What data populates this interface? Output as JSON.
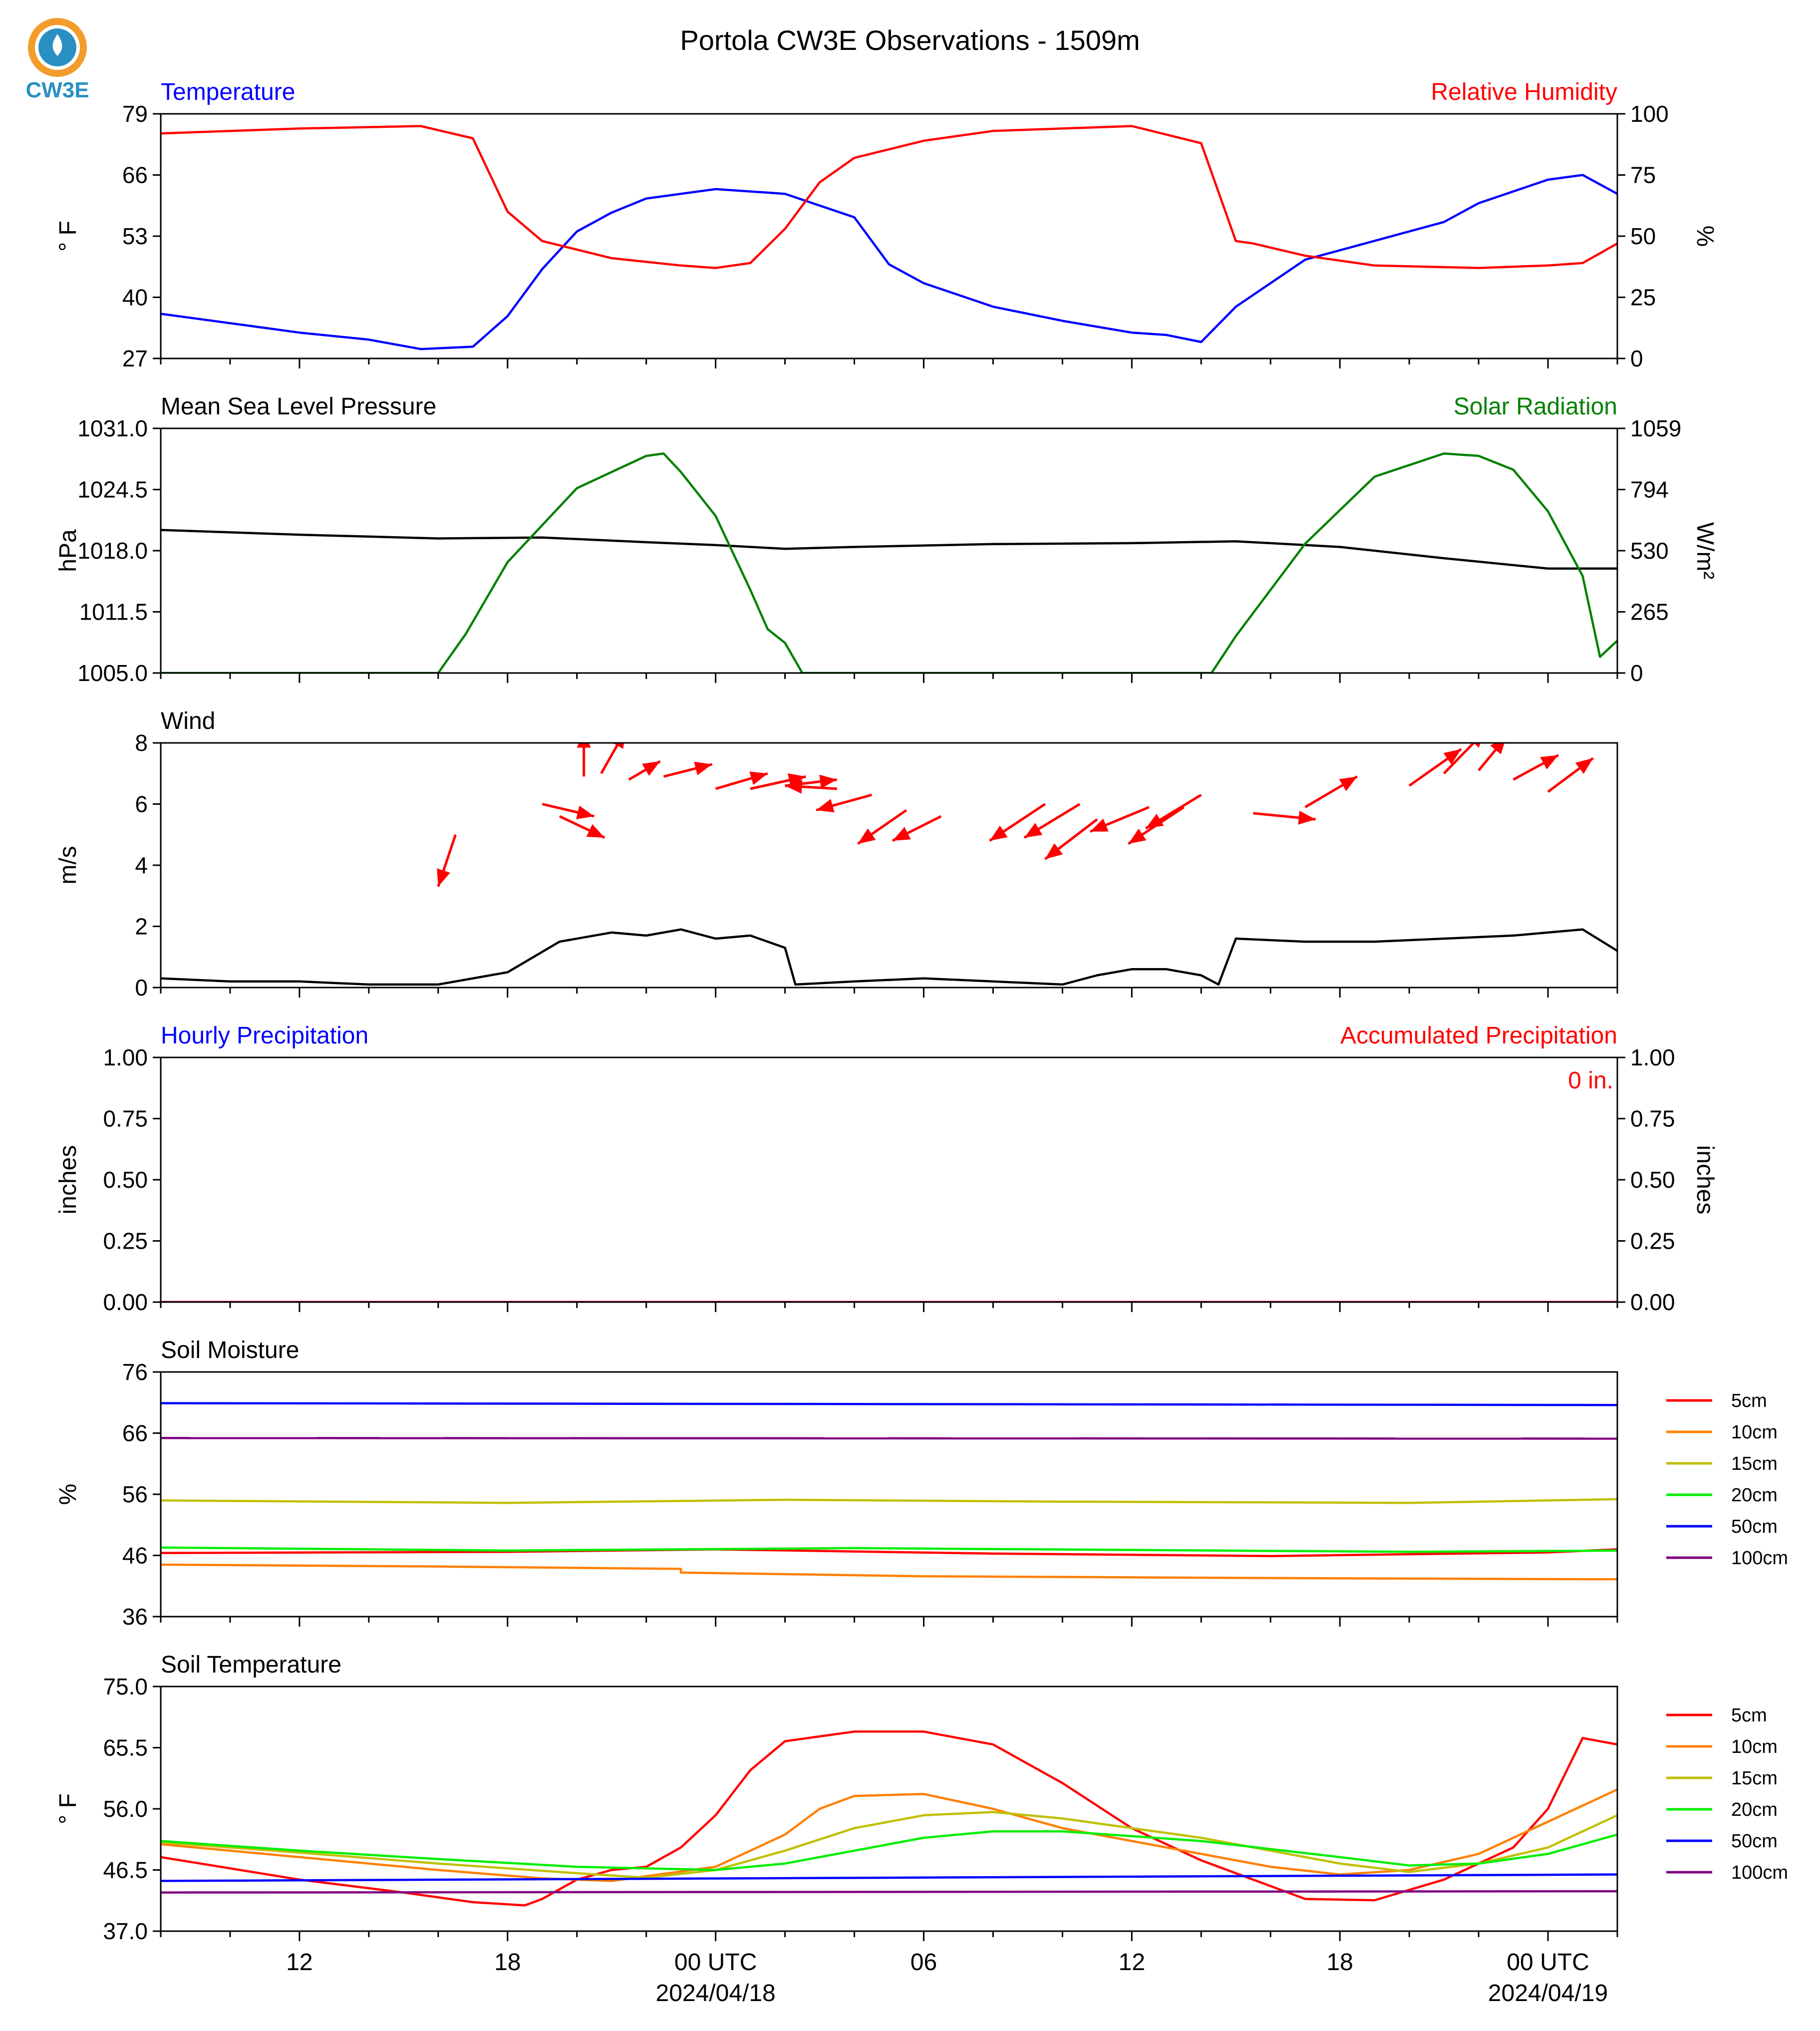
{
  "title": "Portola CW3E Observations - 1509m",
  "logo": {
    "text": "CW3E",
    "color": "#2a8fc1",
    "accent": "#f39c2b"
  },
  "time_axis": {
    "ticks": [
      "12",
      "18",
      "00 UTC",
      "06",
      "12",
      "18",
      "00 UTC"
    ],
    "dates": [
      "2024/04/18",
      "2024/04/19"
    ]
  },
  "chart_data": [
    {
      "panel": "temperature_rh",
      "type": "line",
      "title_left": "Temperature",
      "title_right": "Relative Humidity",
      "ylabel_left": "° F",
      "ylabel_right": "%",
      "ylim_left": [
        27,
        79
      ],
      "ylim_right": [
        0,
        100
      ],
      "yticks_left": [
        "79",
        "66",
        "53",
        "40",
        "27"
      ],
      "yticks_right": [
        "100",
        "75",
        "50",
        "25",
        "0"
      ],
      "xlim_hours": [
        -16,
        26
      ],
      "series": [
        {
          "name": "Temperature",
          "axis": "left",
          "color": "#0000ff",
          "x": [
            -16,
            -14,
            -12,
            -10,
            -8.5,
            -7,
            -6,
            -5,
            -4,
            -3,
            -2,
            0,
            2,
            4,
            5,
            6,
            8,
            10,
            12,
            13,
            14,
            15,
            17,
            19,
            21,
            22,
            24,
            25,
            26
          ],
          "y": [
            36.5,
            34.5,
            32.5,
            31,
            29,
            29.5,
            36,
            46,
            54,
            58,
            61,
            63,
            62,
            57,
            47,
            43,
            38,
            35,
            32.5,
            32,
            30.5,
            38,
            48,
            52,
            56,
            60,
            65,
            66,
            62
          ]
        },
        {
          "name": "Relative Humidity",
          "axis": "right",
          "color": "#ff0000",
          "x": [
            -16,
            -12,
            -8.5,
            -7,
            -6,
            -5,
            -3,
            -1,
            0,
            1,
            2,
            3,
            4,
            6,
            8,
            10,
            12,
            14,
            15,
            15.5,
            17,
            19,
            22,
            24,
            25,
            26
          ],
          "y": [
            92,
            94,
            95,
            90,
            60,
            48,
            41,
            38,
            37,
            39,
            53,
            72,
            82,
            89,
            93,
            94,
            95,
            88,
            48,
            47,
            42,
            38,
            37,
            38,
            39,
            47
          ]
        }
      ]
    },
    {
      "panel": "pressure_solar",
      "type": "line",
      "title_left": "Mean Sea Level Pressure",
      "title_right": "Solar Radiation",
      "ylabel_left": "hPa",
      "ylabel_right": "W/m²",
      "ylim_left": [
        1005.0,
        1031.0
      ],
      "ylim_right": [
        0,
        1059
      ],
      "yticks_left": [
        "1031.0",
        "1024.5",
        "1018.0",
        "1011.5",
        "1005.0"
      ],
      "yticks_right": [
        "1059",
        "794",
        "530",
        "265",
        "0"
      ],
      "series": [
        {
          "name": "Mean Sea Level Pressure",
          "axis": "left",
          "color": "#000000",
          "x": [
            -16,
            -12,
            -8,
            -5,
            -2,
            0,
            2,
            4,
            8,
            12,
            15,
            18,
            21,
            24,
            26
          ],
          "y": [
            1020.2,
            1019.7,
            1019.3,
            1019.4,
            1018.9,
            1018.6,
            1018.2,
            1018.4,
            1018.7,
            1018.8,
            1019.0,
            1018.4,
            1017.2,
            1016.1,
            1016.1
          ]
        },
        {
          "name": "Solar Radiation",
          "axis": "right",
          "color": "#008000",
          "x": [
            -16,
            -8,
            -7.2,
            -6,
            -4,
            -2,
            -1.5,
            -1,
            0,
            1,
            1.5,
            2,
            2.5,
            3,
            14.3,
            15,
            17,
            19,
            21,
            22,
            23,
            24,
            25,
            25.5,
            26
          ],
          "y": [
            0,
            0,
            170,
            480,
            800,
            940,
            950,
            870,
            680,
            360,
            190,
            130,
            0,
            0,
            0,
            160,
            560,
            850,
            950,
            940,
            880,
            700,
            420,
            70,
            140
          ]
        }
      ]
    },
    {
      "panel": "wind",
      "type": "line",
      "title_left": "Wind",
      "ylabel_left": "m/s",
      "ylim_left": [
        0,
        8
      ],
      "yticks_left": [
        "8",
        "6",
        "4",
        "2",
        "0"
      ],
      "series": [
        {
          "name": "Wind",
          "axis": "left",
          "color": "#000000",
          "x": [
            -16,
            -14,
            -12,
            -10,
            -8,
            -6,
            -4.5,
            -3,
            -2,
            -1,
            0,
            1,
            2,
            2.3,
            4,
            6,
            8,
            10,
            11,
            12,
            13,
            14,
            14.5,
            15,
            17,
            19,
            21,
            23,
            24,
            25,
            26
          ],
          "y": [
            0.3,
            0.2,
            0.2,
            0.1,
            0.1,
            0.5,
            1.5,
            1.8,
            1.7,
            1.9,
            1.6,
            1.7,
            1.3,
            0.1,
            0.2,
            0.3,
            0.2,
            0.1,
            0.4,
            0.6,
            0.6,
            0.4,
            0.1,
            1.6,
            1.5,
            1.5,
            1.6,
            1.7,
            1.8,
            1.9,
            1.2
          ]
        }
      ],
      "wind_arrows": {
        "color": "#ff0000",
        "x": [
          -7.5,
          -5,
          -4.5,
          -3.8,
          -3.3,
          -2.5,
          -1.5,
          0,
          1,
          2,
          3.5,
          4.5,
          5.5,
          6.5,
          9.5,
          10.5,
          11,
          12.5,
          13.5,
          14,
          15.5,
          17,
          20,
          21,
          22,
          23,
          24
        ],
        "y": [
          5.0,
          6.0,
          5.6,
          6.9,
          7.0,
          6.8,
          6.9,
          6.5,
          6.5,
          6.6,
          6.5,
          6.3,
          5.8,
          5.6,
          6.0,
          6.0,
          5.5,
          5.9,
          5.9,
          6.3,
          5.7,
          5.9,
          6.6,
          7.0,
          7.1,
          6.8,
          6.4
        ],
        "dx": [
          -0.5,
          1.5,
          1.3,
          0.0,
          0.7,
          0.9,
          1.4,
          1.5,
          1.6,
          1.5,
          -1.5,
          -1.6,
          -1.4,
          -1.4,
          -1.6,
          -1.6,
          -1.5,
          -1.7,
          -1.6,
          -1.6,
          1.8,
          1.5,
          1.5,
          1.2,
          0.8,
          1.3,
          1.3
        ],
        "dy": [
          -1.7,
          -0.4,
          -0.7,
          1.5,
          1.4,
          0.6,
          0.4,
          0.5,
          0.4,
          0.2,
          0.1,
          -0.5,
          -1.1,
          -0.8,
          -1.2,
          -1.1,
          -1.3,
          -0.8,
          -1.2,
          -1.1,
          -0.2,
          1.0,
          1.2,
          1.4,
          1.1,
          0.8,
          1.1
        ]
      }
    },
    {
      "panel": "precipitation",
      "type": "line",
      "title_left": "Hourly Precipitation",
      "title_right": "Accumulated Precipitation",
      "annotation": "0 in.",
      "ylabel_left": "inches",
      "ylabel_right": "inches",
      "ylim_left": [
        0,
        1
      ],
      "ylim_right": [
        0,
        1
      ],
      "yticks_left": [
        "1.00",
        "0.75",
        "0.50",
        "0.25",
        "0.00"
      ],
      "yticks_right": [
        "1.00",
        "0.75",
        "0.50",
        "0.25",
        "0.00"
      ],
      "series": [
        {
          "name": "Hourly Precipitation",
          "axis": "left",
          "color": "#0000ff",
          "x": [
            -16,
            26
          ],
          "y": [
            0,
            0
          ]
        },
        {
          "name": "Accumulated Precipitation",
          "axis": "right",
          "color": "#ff0000",
          "x": [
            -16,
            26
          ],
          "y": [
            0,
            0
          ]
        }
      ]
    },
    {
      "panel": "soil_moisture",
      "type": "line",
      "title_left": "Soil Moisture",
      "ylabel_left": "%",
      "ylim_left": [
        36,
        76
      ],
      "yticks_left": [
        "76",
        "66",
        "56",
        "46",
        "36"
      ],
      "legend_position": "right",
      "series": [
        {
          "name": "5cm",
          "color": "#ff0000",
          "x": [
            -16,
            -6,
            0,
            8,
            16,
            24,
            26
          ],
          "y": [
            46.4,
            46.6,
            47.0,
            46.3,
            45.9,
            46.5,
            47.0
          ]
        },
        {
          "name": "10cm",
          "color": "#ff8000",
          "x": [
            -16,
            -8,
            -1,
            -1,
            6,
            16,
            26
          ],
          "y": [
            44.5,
            44.2,
            43.8,
            43.2,
            42.6,
            42.3,
            42.1
          ]
        },
        {
          "name": "15cm",
          "color": "#bfbf00",
          "x": [
            -16,
            -6,
            2,
            10,
            20,
            26
          ],
          "y": [
            55.0,
            54.6,
            55.1,
            54.8,
            54.6,
            55.2
          ]
        },
        {
          "name": "20cm",
          "color": "#00ee00",
          "x": [
            -16,
            -6,
            4,
            12,
            20,
            26
          ],
          "y": [
            47.3,
            46.8,
            47.2,
            46.9,
            46.6,
            46.8
          ]
        },
        {
          "name": "50cm",
          "color": "#0000ff",
          "x": [
            -16,
            26
          ],
          "y": [
            70.9,
            70.6
          ]
        },
        {
          "name": "100cm",
          "color": "#800080",
          "x": [
            -16,
            26
          ],
          "y": [
            65.2,
            65.1
          ]
        }
      ]
    },
    {
      "panel": "soil_temperature",
      "type": "line",
      "title_left": "Soil Temperature",
      "ylabel_left": "° F",
      "ylim_left": [
        37.0,
        75.0
      ],
      "yticks_left": [
        "75.0",
        "65.5",
        "56.0",
        "46.5",
        "37.0"
      ],
      "legend_position": "right",
      "series": [
        {
          "name": "5cm",
          "color": "#ff0000",
          "x": [
            -16,
            -12,
            -9,
            -7,
            -5.5,
            -5,
            -4,
            -3,
            -2,
            -1,
            0,
            1,
            2,
            4,
            6,
            8,
            10,
            12,
            14,
            16,
            17,
            19,
            21,
            23,
            24,
            25,
            26
          ],
          "y": [
            48.5,
            45,
            43,
            41.5,
            41,
            42,
            45,
            46.5,
            47,
            50,
            55,
            62,
            66.5,
            68,
            68,
            66,
            60,
            53,
            48,
            44,
            42,
            41.8,
            45,
            50,
            56,
            67,
            66
          ]
        },
        {
          "name": "10cm",
          "color": "#ff8000",
          "x": [
            -16,
            -12,
            -8,
            -5,
            -3,
            0,
            2,
            3,
            4,
            6,
            8,
            10,
            12,
            14,
            16,
            18,
            20,
            22,
            24,
            26
          ],
          "y": [
            50.5,
            48.5,
            46.5,
            45.2,
            44.8,
            47,
            52,
            56,
            58,
            58.3,
            56,
            53,
            51,
            49,
            47,
            45.8,
            46.5,
            49,
            54,
            59
          ]
        },
        {
          "name": "15cm",
          "color": "#bfbf00",
          "x": [
            -16,
            -12,
            -8,
            -4,
            -2,
            0,
            2,
            4,
            6,
            8,
            10,
            12,
            14,
            16,
            18,
            20,
            22,
            24,
            26
          ],
          "y": [
            50.8,
            49.2,
            47.5,
            46,
            45.3,
            46.5,
            49.5,
            53,
            55,
            55.5,
            54.5,
            53,
            51.5,
            49.5,
            47.5,
            46.2,
            47.5,
            50,
            55
          ]
        },
        {
          "name": "20cm",
          "color": "#00ee00",
          "x": [
            -16,
            -12,
            -8,
            -4,
            0,
            2,
            4,
            6,
            8,
            10,
            14,
            18,
            20,
            22,
            24,
            26
          ],
          "y": [
            51,
            49.5,
            48.2,
            47,
            46.5,
            47.5,
            49.5,
            51.5,
            52.5,
            52.5,
            51,
            48.5,
            47.2,
            47.5,
            49,
            52
          ]
        },
        {
          "name": "50cm",
          "color": "#0000ff",
          "x": [
            -16,
            26
          ],
          "y": [
            44.8,
            45.8
          ]
        },
        {
          "name": "100cm",
          "color": "#800080",
          "x": [
            -16,
            26
          ],
          "y": [
            43.0,
            43.2
          ]
        }
      ]
    }
  ]
}
